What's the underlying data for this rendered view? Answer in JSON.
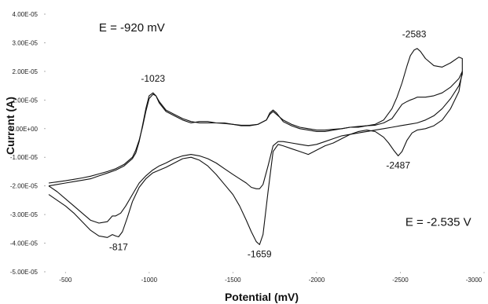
{
  "chart_data": {
    "type": "line",
    "xlabel": "Potential (mV)",
    "ylabel": "Current (A)",
    "xlim": [
      -400,
      -3000
    ],
    "ylim": [
      -5e-05,
      4e-05
    ],
    "x_ticks": [
      {
        "value": -500,
        "label": "-500"
      },
      {
        "value": -1000,
        "label": "-1000"
      },
      {
        "value": -1500,
        "label": "-1500"
      },
      {
        "value": -2000,
        "label": "-2000"
      },
      {
        "value": -2500,
        "label": "-2500"
      },
      {
        "value": -3000,
        "label": "-3000"
      }
    ],
    "y_ticks": [
      {
        "value": 4e-05,
        "label": "4.00E-05"
      },
      {
        "value": 3e-05,
        "label": "3.00E-05"
      },
      {
        "value": 2e-05,
        "label": "2.00E-05"
      },
      {
        "value": 1e-05,
        "label": "1.00E-05"
      },
      {
        "value": 0,
        "label": "0.00E+00"
      },
      {
        "value": -1e-05,
        "label": "-1.00E-05"
      },
      {
        "value": -2e-05,
        "label": "-2.00E-05"
      },
      {
        "value": -3e-05,
        "label": "-3.00E-05"
      },
      {
        "value": -4e-05,
        "label": "-4.00E-05"
      },
      {
        "value": -5e-05,
        "label": "-5.00E-05"
      }
    ],
    "grid": false,
    "annotations": [
      {
        "text": "E = -920 mV",
        "x": -700,
        "y": 3.4e-05
      },
      {
        "text": "E = -2.535 V",
        "x": -2530,
        "y": -3.4e-05
      }
    ],
    "peak_labels": [
      {
        "text": "-1023",
        "x": -1023,
        "y": 1.25e-05
      },
      {
        "text": "-2583",
        "x": -2583,
        "y": 2.8e-05
      },
      {
        "text": "-817",
        "x": -817,
        "y": -3.8e-05
      },
      {
        "text": "-1659",
        "x": -1659,
        "y": -4.05e-05
      },
      {
        "text": "-2487",
        "x": -2487,
        "y": -9.5e-06
      }
    ],
    "series": [
      {
        "x": [
          -400,
          -450,
          -500,
          -550,
          -600,
          -650,
          -700,
          -750,
          -780,
          -800,
          -817,
          -840,
          -870,
          -900,
          -940,
          -980,
          -1020,
          -1060,
          -1100,
          -1150,
          -1200,
          -1250,
          -1300,
          -1350,
          -1400,
          -1450,
          -1500,
          -1540,
          -1580,
          -1610,
          -1640,
          -1659,
          -1680,
          -1710,
          -1740,
          -1770,
          -1800,
          -1850,
          -1900,
          -1950,
          -2000,
          -2050,
          -2100,
          -2150,
          -2200,
          -2250,
          -2300,
          -2350,
          -2400,
          -2430,
          -2460,
          -2487,
          -2510,
          -2540,
          -2570,
          -2600,
          -2650,
          -2700,
          -2750,
          -2800,
          -2850,
          -2870,
          -2870,
          -2850,
          -2800,
          -2750,
          -2700,
          -2650,
          -2620,
          -2600,
          -2583,
          -2560,
          -2540,
          -2510,
          -2480,
          -2450,
          -2400,
          -2350,
          -2300,
          -2250,
          -2200,
          -2150,
          -2100,
          -2050,
          -2000,
          -1950,
          -1900,
          -1850,
          -1800,
          -1760,
          -1740,
          -1720,
          -1700,
          -1650,
          -1600,
          -1550,
          -1500,
          -1450,
          -1400,
          -1350,
          -1300,
          -1250,
          -1200,
          -1150,
          -1100,
          -1060,
          -1040,
          -1023,
          -1000,
          -980,
          -960,
          -940,
          -920,
          -900,
          -850,
          -800,
          -750,
          -700,
          -650,
          -600,
          -550,
          -500,
          -450,
          -400
        ],
        "y": [
          -2.3e-05,
          -2.5e-05,
          -2.7e-05,
          -2.95e-05,
          -3.25e-05,
          -3.55e-05,
          -3.75e-05,
          -3.8e-05,
          -3.7e-05,
          -3.75e-05,
          -3.78e-05,
          -3.6e-05,
          -3.1e-05,
          -2.55e-05,
          -2.05e-05,
          -1.75e-05,
          -1.55e-05,
          -1.45e-05,
          -1.35e-05,
          -1.2e-05,
          -1.05e-05,
          -1e-05,
          -1.1e-05,
          -1.3e-05,
          -1.6e-05,
          -1.95e-05,
          -2.3e-05,
          -2.7e-05,
          -3.2e-05,
          -3.6e-05,
          -3.95e-05,
          -4.05e-05,
          -3.7e-05,
          -2.2e-05,
          -8e-06,
          -5.5e-06,
          -6e-06,
          -7e-06,
          -8e-06,
          -9e-06,
          -7.5e-06,
          -6e-06,
          -5e-06,
          -3.5e-06,
          -2e-06,
          -1e-06,
          -5e-07,
          -1e-06,
          -3e-06,
          -5e-06,
          -7.5e-06,
          -9.5e-06,
          -8e-06,
          -4e-06,
          -1.5e-06,
          -5e-07,
          0.0,
          1e-06,
          3e-06,
          7e-06,
          1.3e-05,
          2e-05,
          2.45e-05,
          2.5e-05,
          2.3e-05,
          2.15e-05,
          2.2e-05,
          2.45e-05,
          2.7e-05,
          2.8e-05,
          2.75e-05,
          2.55e-05,
          2.2e-05,
          1.6e-05,
          1.1e-05,
          7e-06,
          3e-06,
          1.5e-06,
          1e-06,
          5e-07,
          5e-07,
          0.0,
          -5e-07,
          -1e-06,
          -1e-06,
          -5e-07,
          0.0,
          1e-06,
          2.5e-06,
          5.5e-06,
          6.5e-06,
          5.5e-06,
          3e-06,
          1.5e-06,
          1e-06,
          1e-06,
          1.5e-06,
          2e-06,
          2e-06,
          2.5e-06,
          2.5e-06,
          2e-06,
          3e-06,
          4.5e-06,
          6e-06,
          9e-06,
          1.15e-05,
          1.25e-05,
          1.15e-05,
          7e-06,
          1e-06,
          -4.5e-06,
          -8.5e-06,
          -1.05e-05,
          -1.3e-05,
          -1.45e-05,
          -1.55e-05,
          -1.65e-05,
          -1.75e-05,
          -1.8e-05,
          -1.85e-05,
          -1.9e-05,
          -1.95e-05,
          -2e-05
        ]
      },
      {
        "x": [
          -400,
          -450,
          -500,
          -550,
          -600,
          -650,
          -700,
          -750,
          -780,
          -800,
          -830,
          -860,
          -900,
          -940,
          -980,
          -1020,
          -1060,
          -1100,
          -1150,
          -1200,
          -1250,
          -1300,
          -1350,
          -1400,
          -1450,
          -1500,
          -1540,
          -1580,
          -1610,
          -1640,
          -1659,
          -1680,
          -1710,
          -1740,
          -1770,
          -1800,
          -1850,
          -1900,
          -1950,
          -2000,
          -2050,
          -2100,
          -2150,
          -2200,
          -2250,
          -2300,
          -2350,
          -2400,
          -2450,
          -2500,
          -2550,
          -2600,
          -2650,
          -2700,
          -2750,
          -2800,
          -2850,
          -2870,
          -2870,
          -2850,
          -2800,
          -2750,
          -2700,
          -2650,
          -2600,
          -2583,
          -2560,
          -2540,
          -2510,
          -2480,
          -2450,
          -2400,
          -2350,
          -2300,
          -2250,
          -2200,
          -2150,
          -2100,
          -2050,
          -2000,
          -1950,
          -1900,
          -1850,
          -1800,
          -1760,
          -1740,
          -1720,
          -1700,
          -1650,
          -1600,
          -1550,
          -1500,
          -1450,
          -1400,
          -1350,
          -1300,
          -1250,
          -1200,
          -1150,
          -1100,
          -1060,
          -1040,
          -1023,
          -1000,
          -980,
          -960,
          -940,
          -920,
          -900,
          -850,
          -800,
          -750,
          -700,
          -650,
          -600,
          -550,
          -500,
          -450,
          -400
        ],
        "y": [
          -2e-05,
          -2.2e-05,
          -2.45e-05,
          -2.7e-05,
          -2.95e-05,
          -3.2e-05,
          -3.3e-05,
          -3.25e-05,
          -3.05e-05,
          -3.05e-05,
          -2.95e-05,
          -2.7e-05,
          -2.3e-05,
          -1.9e-05,
          -1.65e-05,
          -1.45e-05,
          -1.3e-05,
          -1.2e-05,
          -1.05e-05,
          -9.5e-06,
          -9e-06,
          -9.5e-06,
          -1.05e-05,
          -1.2e-05,
          -1.4e-05,
          -1.6e-05,
          -1.75e-05,
          -1.9e-05,
          -2.05e-05,
          -2.1e-05,
          -2.1e-05,
          -1.95e-05,
          -1.3e-05,
          -6e-06,
          -4.5e-06,
          -4.5e-06,
          -5e-06,
          -5.5e-06,
          -6e-06,
          -5.5e-06,
          -4.5e-06,
          -3.5e-06,
          -2.5e-06,
          -2e-06,
          -1.5e-06,
          -1e-06,
          -5e-07,
          0.0,
          5e-07,
          1e-06,
          1.5e-06,
          2e-06,
          3e-06,
          4.5e-06,
          7e-06,
          1.05e-05,
          1.5e-05,
          1.9e-05,
          2e-05,
          1.75e-05,
          1.45e-05,
          1.25e-05,
          1.15e-05,
          1.1e-05,
          1.1e-05,
          1.05e-05,
          1e-05,
          9.5e-06,
          8.5e-06,
          6e-06,
          3.5e-06,
          2e-06,
          1.2e-06,
          1e-06,
          8e-07,
          5e-07,
          0.0,
          -2e-07,
          -5e-07,
          -5e-07,
          0.0,
          5e-07,
          1.5e-06,
          3e-06,
          5e-06,
          6e-06,
          5e-06,
          3e-06,
          1.5e-06,
          1.2e-06,
          1.2e-06,
          1.5e-06,
          1.8e-06,
          2e-06,
          2e-06,
          2e-06,
          2.5e-06,
          3.5e-06,
          5e-06,
          6.5e-06,
          9.5e-06,
          1.15e-05,
          1.2e-05,
          1.05e-05,
          6e-06,
          5e-07,
          -4e-06,
          -7.5e-06,
          -1e-05,
          -1.25e-05,
          -1.4e-05,
          -1.5e-05,
          -1.58e-05,
          -1.66e-05,
          -1.72e-05,
          -1.77e-05,
          -1.82e-05,
          -1.86e-05,
          -1.9e-05
        ]
      }
    ]
  }
}
